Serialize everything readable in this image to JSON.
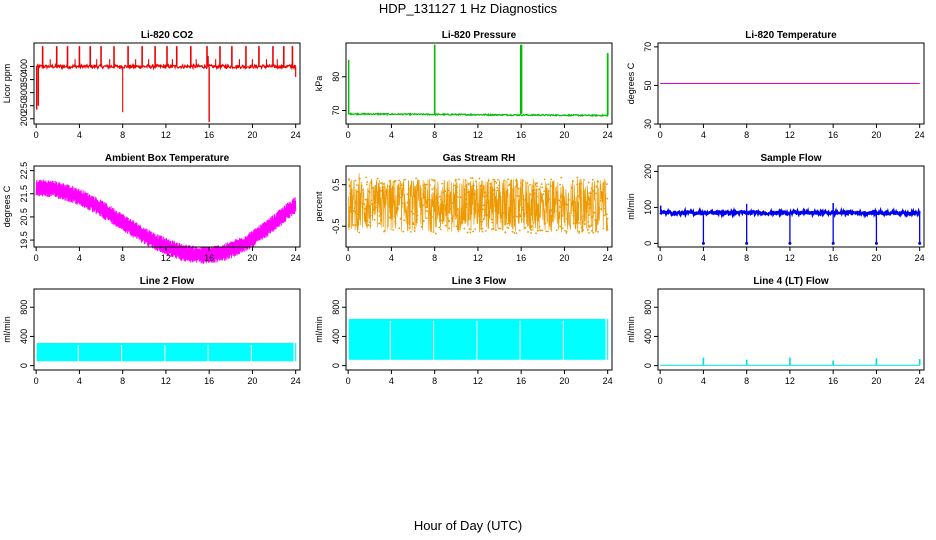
{
  "title": "HDP_131127  1 Hz Diagnostics",
  "xlabel": "Hour of Day (UTC)",
  "chart_data": [
    {
      "name": "co2",
      "type": "line",
      "title": "Li-820 CO2",
      "ylabel": "Licor ppm",
      "color": "#ee0000",
      "ylim": [
        180,
        490
      ],
      "yticks": [
        200,
        250,
        300,
        350,
        400
      ],
      "xlim": [
        -0.2,
        24.4
      ],
      "xticks": [
        0,
        4,
        8,
        12,
        16,
        20,
        24
      ],
      "pattern": "co2"
    },
    {
      "name": "pressure",
      "type": "line",
      "title": "Li-820 Pressure",
      "ylabel": "kPa",
      "color": "#00bb00",
      "ylim": [
        66,
        90
      ],
      "yticks": [
        70,
        80
      ],
      "xlim": [
        -0.2,
        24.4
      ],
      "xticks": [
        0,
        4,
        8,
        12,
        16,
        20,
        24
      ],
      "pattern": "pressure"
    },
    {
      "name": "temperature",
      "type": "line",
      "title": "Li-820 Temperature",
      "ylabel": "degrees C",
      "color": "#dd00dd",
      "ylim": [
        30,
        72
      ],
      "yticks": [
        30,
        50,
        70
      ],
      "xlim": [
        -0.2,
        24.4
      ],
      "xticks": [
        0,
        4,
        8,
        12,
        16,
        20,
        24
      ],
      "pattern": "flat",
      "level": 51
    },
    {
      "name": "ambient",
      "type": "line",
      "title": "Ambient Box Temperature",
      "ylabel": "degrees C",
      "color": "#ff00ff",
      "ylim": [
        19.2,
        22.7
      ],
      "yticks": [
        19.5,
        20.5,
        21.5,
        22.5
      ],
      "xlim": [
        -0.2,
        24.4
      ],
      "xticks": [
        0,
        4,
        8,
        12,
        16,
        20,
        24
      ],
      "pattern": "ambient"
    },
    {
      "name": "rh",
      "type": "scatter",
      "title": "Gas Stream RH",
      "ylabel": "percent",
      "color": "#ee9900",
      "ylim": [
        -1.0,
        0.95
      ],
      "yticks": [
        -0.5,
        0.5
      ],
      "xlim": [
        -0.2,
        24.4
      ],
      "xticks": [
        0,
        4,
        8,
        12,
        16,
        20,
        24
      ],
      "pattern": "rh"
    },
    {
      "name": "sample-flow",
      "type": "line",
      "title": "Sample Flow",
      "ylabel": "ml/min",
      "color": "#0000ee",
      "ylim": [
        -10,
        215
      ],
      "yticks": [
        0,
        100,
        200
      ],
      "xlim": [
        -0.2,
        24.4
      ],
      "xticks": [
        0,
        4,
        8,
        12,
        16,
        20,
        24
      ],
      "pattern": "sampleflow"
    },
    {
      "name": "line2-flow",
      "type": "area",
      "title": "Line 2 Flow",
      "ylabel": "ml/min",
      "color": "#00ffff",
      "ylim": [
        -60,
        1050
      ],
      "yticks": [
        0,
        400,
        800
      ],
      "xlim": [
        -0.2,
        24.4
      ],
      "xticks": [
        0,
        4,
        8,
        12,
        16,
        20,
        24
      ],
      "pattern": "band",
      "low": 60,
      "high": 310
    },
    {
      "name": "line3-flow",
      "type": "area",
      "title": "Line 3 Flow",
      "ylabel": "ml/min",
      "color": "#00ffff",
      "ylim": [
        -60,
        1050
      ],
      "yticks": [
        0,
        400,
        800
      ],
      "xlim": [
        -0.2,
        24.4
      ],
      "xticks": [
        0,
        4,
        8,
        12,
        16,
        20,
        24
      ],
      "pattern": "band",
      "low": 80,
      "high": 640
    },
    {
      "name": "line4-flow",
      "type": "line",
      "title": "Line 4 (LT) Flow",
      "ylabel": "ml/min",
      "color": "#00dddd",
      "ylim": [
        -60,
        1050
      ],
      "yticks": [
        0,
        400,
        800
      ],
      "xlim": [
        -0.2,
        24.4
      ],
      "xticks": [
        0,
        4,
        8,
        12,
        16,
        20,
        24
      ],
      "pattern": "spikes"
    }
  ]
}
